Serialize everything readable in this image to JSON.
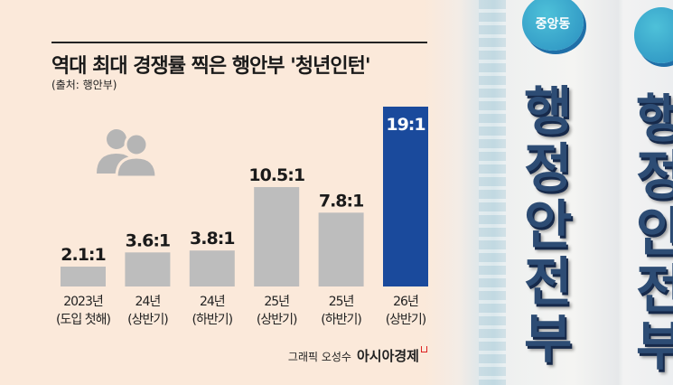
{
  "title": "역대 최대 경쟁률 찍은 행안부 '청년인턴'",
  "source": "(출처: 행안부)",
  "credit": {
    "author": "그래픽 오성수",
    "brand": "아시아경제"
  },
  "photo": {
    "badge": "중앙동",
    "sign_text": [
      "행",
      "정",
      "안",
      "전",
      "부"
    ]
  },
  "icon": "people-icon",
  "chart_data": {
    "type": "bar",
    "categories": [
      [
        "2023년",
        "(도입 첫해)"
      ],
      [
        "24년",
        "(상반기)"
      ],
      [
        "24년",
        "(하반기)"
      ],
      [
        "25년",
        "(상반기)"
      ],
      [
        "25년",
        "(하반기)"
      ],
      [
        "26년",
        "(상반기)"
      ]
    ],
    "values": [
      2.1,
      3.6,
      3.8,
      10.5,
      7.8,
      19
    ],
    "labels": [
      "2.1:1",
      "3.6:1",
      "3.8:1",
      "10.5:1",
      "7.8:1",
      "19:1"
    ],
    "colors": {
      "default": "#bdbdbd",
      "highlight": "#1a4a9c",
      "highlight_label": "#ffffff"
    },
    "highlight_index": 5,
    "ylim": [
      0,
      19
    ],
    "grid": false
  }
}
